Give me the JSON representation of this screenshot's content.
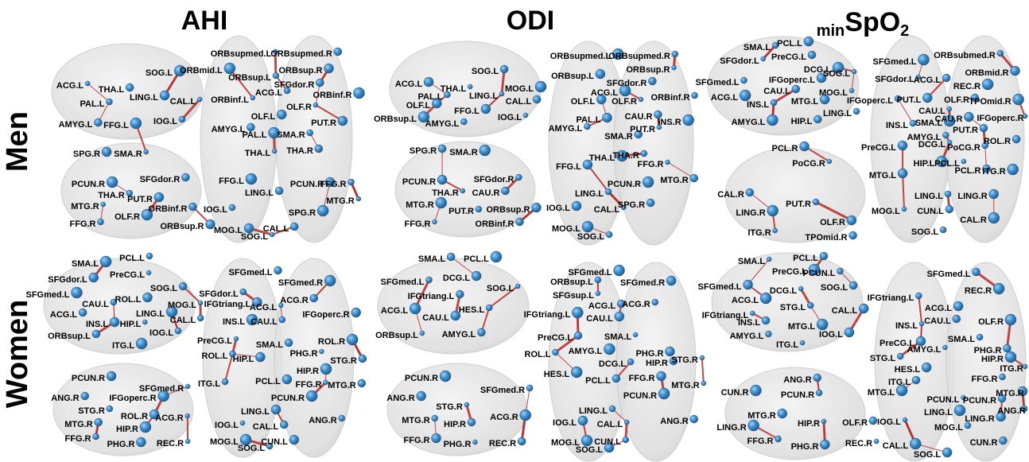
{
  "columns": [
    "AHI",
    "ODI",
    {
      "prefix": "min",
      "main": "SpO",
      "sub": "2"
    }
  ],
  "rows": [
    "Men",
    "Women"
  ],
  "panels": [
    {
      "labels": [
        "ACG.L",
        "THA.L",
        "SOG.L",
        "PAL.L",
        "LING.L",
        "CAL.L",
        "AMYG.L",
        "FFG.L",
        "IOG.L",
        "SPG.R",
        "SMA.R",
        "SFGdor.R",
        "PCUN.R",
        "THA.R",
        "PUT.R",
        "MTG.R",
        "ORBinf.R",
        "OLF.R",
        "FFG.R",
        "ORBsup.R",
        "ORBsupmed.L",
        "ORBsupmed.R",
        "ORBmid.L",
        "ORBsup.L",
        "ORBsup.R",
        "ORBinf.L",
        "SFGdor.R",
        "ORBinf.R",
        "ACG.L",
        "OLF.L",
        "OLF.R",
        "AMYG.L",
        "PAL.L",
        "SMA.R",
        "PUT.R",
        "THA.L",
        "THA.R",
        "FFG.L",
        "FFG.R",
        "PCUN.R",
        "MTG.R",
        "LING.L",
        "SPG.R",
        "IOG.L",
        "MOG.L",
        "SOG.L",
        "CAL.L"
      ]
    },
    {
      "labels": [
        "ACG.L",
        "THA.L",
        "SOG.L",
        "MOG.L",
        "PAL.L",
        "OLF.L",
        "LING.L",
        "CAL.L",
        "ORBsup.L",
        "AMYG.L",
        "FFG.L",
        "IOG.L",
        "SPG.R",
        "SMA.R",
        "SFGdor.R",
        "PCUN.R",
        "THA.R",
        "CAU.R",
        "MTG.R",
        "PUT.R",
        "ORBsup.R",
        "FFG.R",
        "ORBinf.R",
        "ORBsupmed.L",
        "ORBsupmed.R",
        "ORBsup.L",
        "ORBsup.R",
        "SFGdor.R",
        "ACG.L",
        "ORBinf.R",
        "OLF.L",
        "OLF.R",
        "CAU.R",
        "INS.R",
        "AMYG.L",
        "PAL.L",
        "PUT.R",
        "SMA.R",
        "THA.L",
        "THA.R",
        "FFG.L",
        "FFG.R",
        "MTG.R",
        "PCUN.R",
        "LING.L",
        "IOG.L",
        "CAL.L",
        "SPG.R",
        "MOG.L",
        "SOG.L"
      ]
    },
    {
      "labels": [
        "SMA.L",
        "PCL.L",
        "SFGdor.L",
        "PreCG.L",
        "DCG.L",
        "SFGmed.L",
        "IFGoperc.L",
        "SOG.L",
        "CAU.L",
        "ACG.L",
        "INS.L",
        "MTG.L",
        "MOG.L",
        "HIP.L",
        "AMYG.L",
        "LING.L",
        "PCL.R",
        "PoCG.R",
        "CAL.R",
        "LING.R",
        "PUT.R",
        "OLF.R",
        "ITG.R",
        "TPOmid.R",
        "SFGmed.L",
        "ORBsubmed.R",
        "ORBmid.R",
        "SFGdor.L",
        "ACG.L",
        "REC.R",
        "IFGoperc.L",
        "PUT.L",
        "CAU.L",
        "OLF.R",
        "TPOmid.R",
        "INS.L",
        "CAU.R",
        "IFGoperc.R",
        "PUT.R",
        "SMA.L",
        "AMYG.L",
        "PreCG.L",
        "DCG.L",
        "ROL.R",
        "HIP.L",
        "PoCG.R",
        "MTG.L",
        "PCL.L",
        "PCL.R",
        "ITG.R",
        "LING.L",
        "LING.R",
        "MOG.L",
        "CUN.L",
        "CAL.R",
        "SOG.L"
      ]
    },
    {
      "labels": [
        "SMA.L",
        "PCL.L",
        "SFGdor.L",
        "PreCG.L",
        "SOG.L",
        "SFGmed.L",
        "CAU.L",
        "ROL.L",
        "MOG.L",
        "ACG.L",
        "LING.L",
        "CAL.L",
        "INS.L",
        "HIP.L",
        "ORBsup.L",
        "ITG.L",
        "IOG.L",
        "PCUN.R",
        "SFGmed.R",
        "ANG.R",
        "IFGoperc.R",
        "STG.R",
        "ROL.R",
        "ACG.R",
        "MTG.R",
        "HIP.R",
        "FFG.R",
        "PHG.R",
        "REC.R",
        "SFGmed.L",
        "SFGmed.R",
        "SFGdor.L",
        "IFGtriang.L",
        "ACG.L",
        "ACG.R",
        "INS.L",
        "CAU.L",
        "IFGoperc.R",
        "PreCG.L",
        "SMA.L",
        "ROL.R",
        "ROL.L",
        "HIP.L",
        "PHG.R",
        "STG.R",
        "HIP.R",
        "ITG.L",
        "PCL.L",
        "FFG.R",
        "MTG.R",
        "PCUN.R",
        "ANG.R",
        "LING.L",
        "IOG.L",
        "CAL.L",
        "MOG.L",
        "SOG.L",
        "CUN.L"
      ]
    },
    {
      "labels": [
        "SMA.L",
        "PCL.L",
        "SFGmed.L",
        "DCG.L",
        "SOG.L",
        "IFGtriang.L",
        "ACG.L",
        "HES.L",
        "CAU.L",
        "ORBsup.L",
        "AMYG.L",
        "PCUN.R",
        "SFGmed.R",
        "ANG.R",
        "STG.R",
        "HIP.R",
        "ACG.R",
        "MTG.R",
        "FFG.R",
        "PHG.R",
        "REC.R",
        "SFGmed.L",
        "ORBsup.L",
        "SFGmed.R",
        "SFGsup.L",
        "ACG.L",
        "IFGtriang.L",
        "ACG.R",
        "CAU.L",
        "SMA.L",
        "PreCG.L",
        "AMYG.L",
        "ROL.L",
        "PHG.R",
        "STG.R",
        "HIP.R",
        "HES.L",
        "DCG.L",
        "FFG.R",
        "MTG.R",
        "PCL.L",
        "PCUN.R",
        "LING.L",
        "IOG.L",
        "CAL.L",
        "ANG.R",
        "MOG.L",
        "CUN.L",
        "SOG.L"
      ]
    },
    {
      "labels": [
        "SMA.L",
        "PCL.L",
        "PreCG.L",
        "PCUN.L",
        "SFGmed.L",
        "DCG.L",
        "SOG.L",
        "ACG.L",
        "STG.L",
        "CAL.L",
        "IFGtriang.L",
        "INS.L",
        "MTG.L",
        "AMYG.L",
        "IOG.L",
        "ITG.L",
        "ANG.R",
        "CUN.R",
        "PCUN.R",
        "MTG.R",
        "HIP.R",
        "OLF.R",
        "LING.R",
        "FFG.R",
        "PHG.R",
        "REC.R",
        "SFGmed.L",
        "REC.R",
        "IFGtriang.L",
        "ACG.L",
        "INS.L",
        "CAU.L",
        "OLF.R",
        "SMA.L",
        "PreCG.L",
        "AMYG.L",
        "PHG.R",
        "HIP.R",
        "STG.L",
        "HES.L",
        "ITG.R",
        "ITG.L",
        "MTG.L",
        "FFG.R",
        "MTG.R",
        "PCUN.L",
        "PCUN.R",
        "LING.L",
        "ANG.R",
        "LING.R",
        "IOG.L",
        "CUN.R",
        "CAL.L",
        "MOG.L",
        "SOG.L"
      ]
    }
  ]
}
